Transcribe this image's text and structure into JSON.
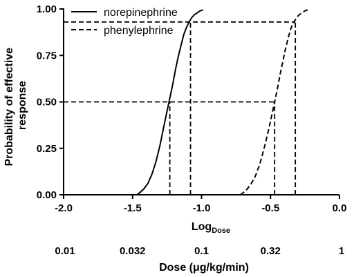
{
  "chart_data": {
    "type": "line",
    "xlabel_main": "Log",
    "xlabel_sub": "Dose",
    "ylabel_lines": [
      "Probability of effective",
      "response"
    ],
    "secondary_xlabel": "Dose (μg/kg/min)",
    "xlim": [
      -2.0,
      0.0
    ],
    "ylim": [
      0.0,
      1.0
    ],
    "x_ticks": [
      {
        "value": -2.0,
        "label": "-2.0"
      },
      {
        "value": -1.5,
        "label": "-1.5"
      },
      {
        "value": -1.0,
        "label": "-1.0"
      },
      {
        "value": -0.5,
        "label": "-0.5"
      },
      {
        "value": 0.0,
        "label": "0.0"
      }
    ],
    "y_ticks": [
      {
        "value": 0.0,
        "label": "0.00"
      },
      {
        "value": 0.25,
        "label": "0.25"
      },
      {
        "value": 0.5,
        "label": "0.50"
      },
      {
        "value": 0.75,
        "label": "0.75"
      },
      {
        "value": 1.0,
        "label": "1.00"
      }
    ],
    "dose_ticks": [
      {
        "value": -2.0,
        "label": "0.01"
      },
      {
        "value": -1.5,
        "label": "0.032"
      },
      {
        "value": -1.0,
        "label": "0.1"
      },
      {
        "value": -0.5,
        "label": "0.32"
      },
      {
        "value": 0.0,
        "label": "1"
      }
    ],
    "series": [
      {
        "name": "norepinephrine",
        "style": "solid",
        "color": "#000000",
        "x": [
          -1.47,
          -1.45,
          -1.42,
          -1.39,
          -1.36,
          -1.33,
          -1.3,
          -1.27,
          -1.25,
          -1.23,
          -1.21,
          -1.19,
          -1.17,
          -1.15,
          -1.13,
          -1.11,
          -1.09,
          -1.07,
          -1.05,
          -1.03,
          -1.01,
          -0.99
        ],
        "y": [
          0.0,
          0.01,
          0.03,
          0.06,
          0.11,
          0.18,
          0.27,
          0.38,
          0.45,
          0.52,
          0.59,
          0.67,
          0.74,
          0.8,
          0.86,
          0.9,
          0.93,
          0.955,
          0.97,
          0.98,
          0.99,
          0.995
        ]
      },
      {
        "name": "phenylephrine",
        "style": "dashed",
        "color": "#000000",
        "x": [
          -0.72,
          -0.7,
          -0.67,
          -0.64,
          -0.61,
          -0.58,
          -0.55,
          -0.52,
          -0.49,
          -0.47,
          -0.45,
          -0.43,
          -0.41,
          -0.39,
          -0.37,
          -0.35,
          -0.33,
          -0.31,
          -0.29,
          -0.27,
          -0.25,
          -0.23
        ],
        "y": [
          0.0,
          0.01,
          0.03,
          0.06,
          0.1,
          0.16,
          0.24,
          0.33,
          0.43,
          0.5,
          0.57,
          0.65,
          0.72,
          0.79,
          0.85,
          0.9,
          0.93,
          0.955,
          0.97,
          0.98,
          0.99,
          0.995
        ]
      }
    ],
    "reference_lines": [
      {
        "type": "horizontal",
        "y": 0.5,
        "x_from": -2.0,
        "x_to": -0.47
      },
      {
        "type": "horizontal",
        "y": 0.93,
        "x_from": -2.0,
        "x_to": -0.32
      },
      {
        "type": "vertical",
        "x": -1.23,
        "y_from": 0.0,
        "y_to": 0.5
      },
      {
        "type": "vertical",
        "x": -1.08,
        "y_from": 0.0,
        "y_to": 0.93
      },
      {
        "type": "vertical",
        "x": -0.47,
        "y_from": 0.0,
        "y_to": 0.5
      },
      {
        "type": "vertical",
        "x": -0.32,
        "y_from": 0.0,
        "y_to": 0.93
      }
    ],
    "legend_position": "top-left",
    "grid": false
  }
}
